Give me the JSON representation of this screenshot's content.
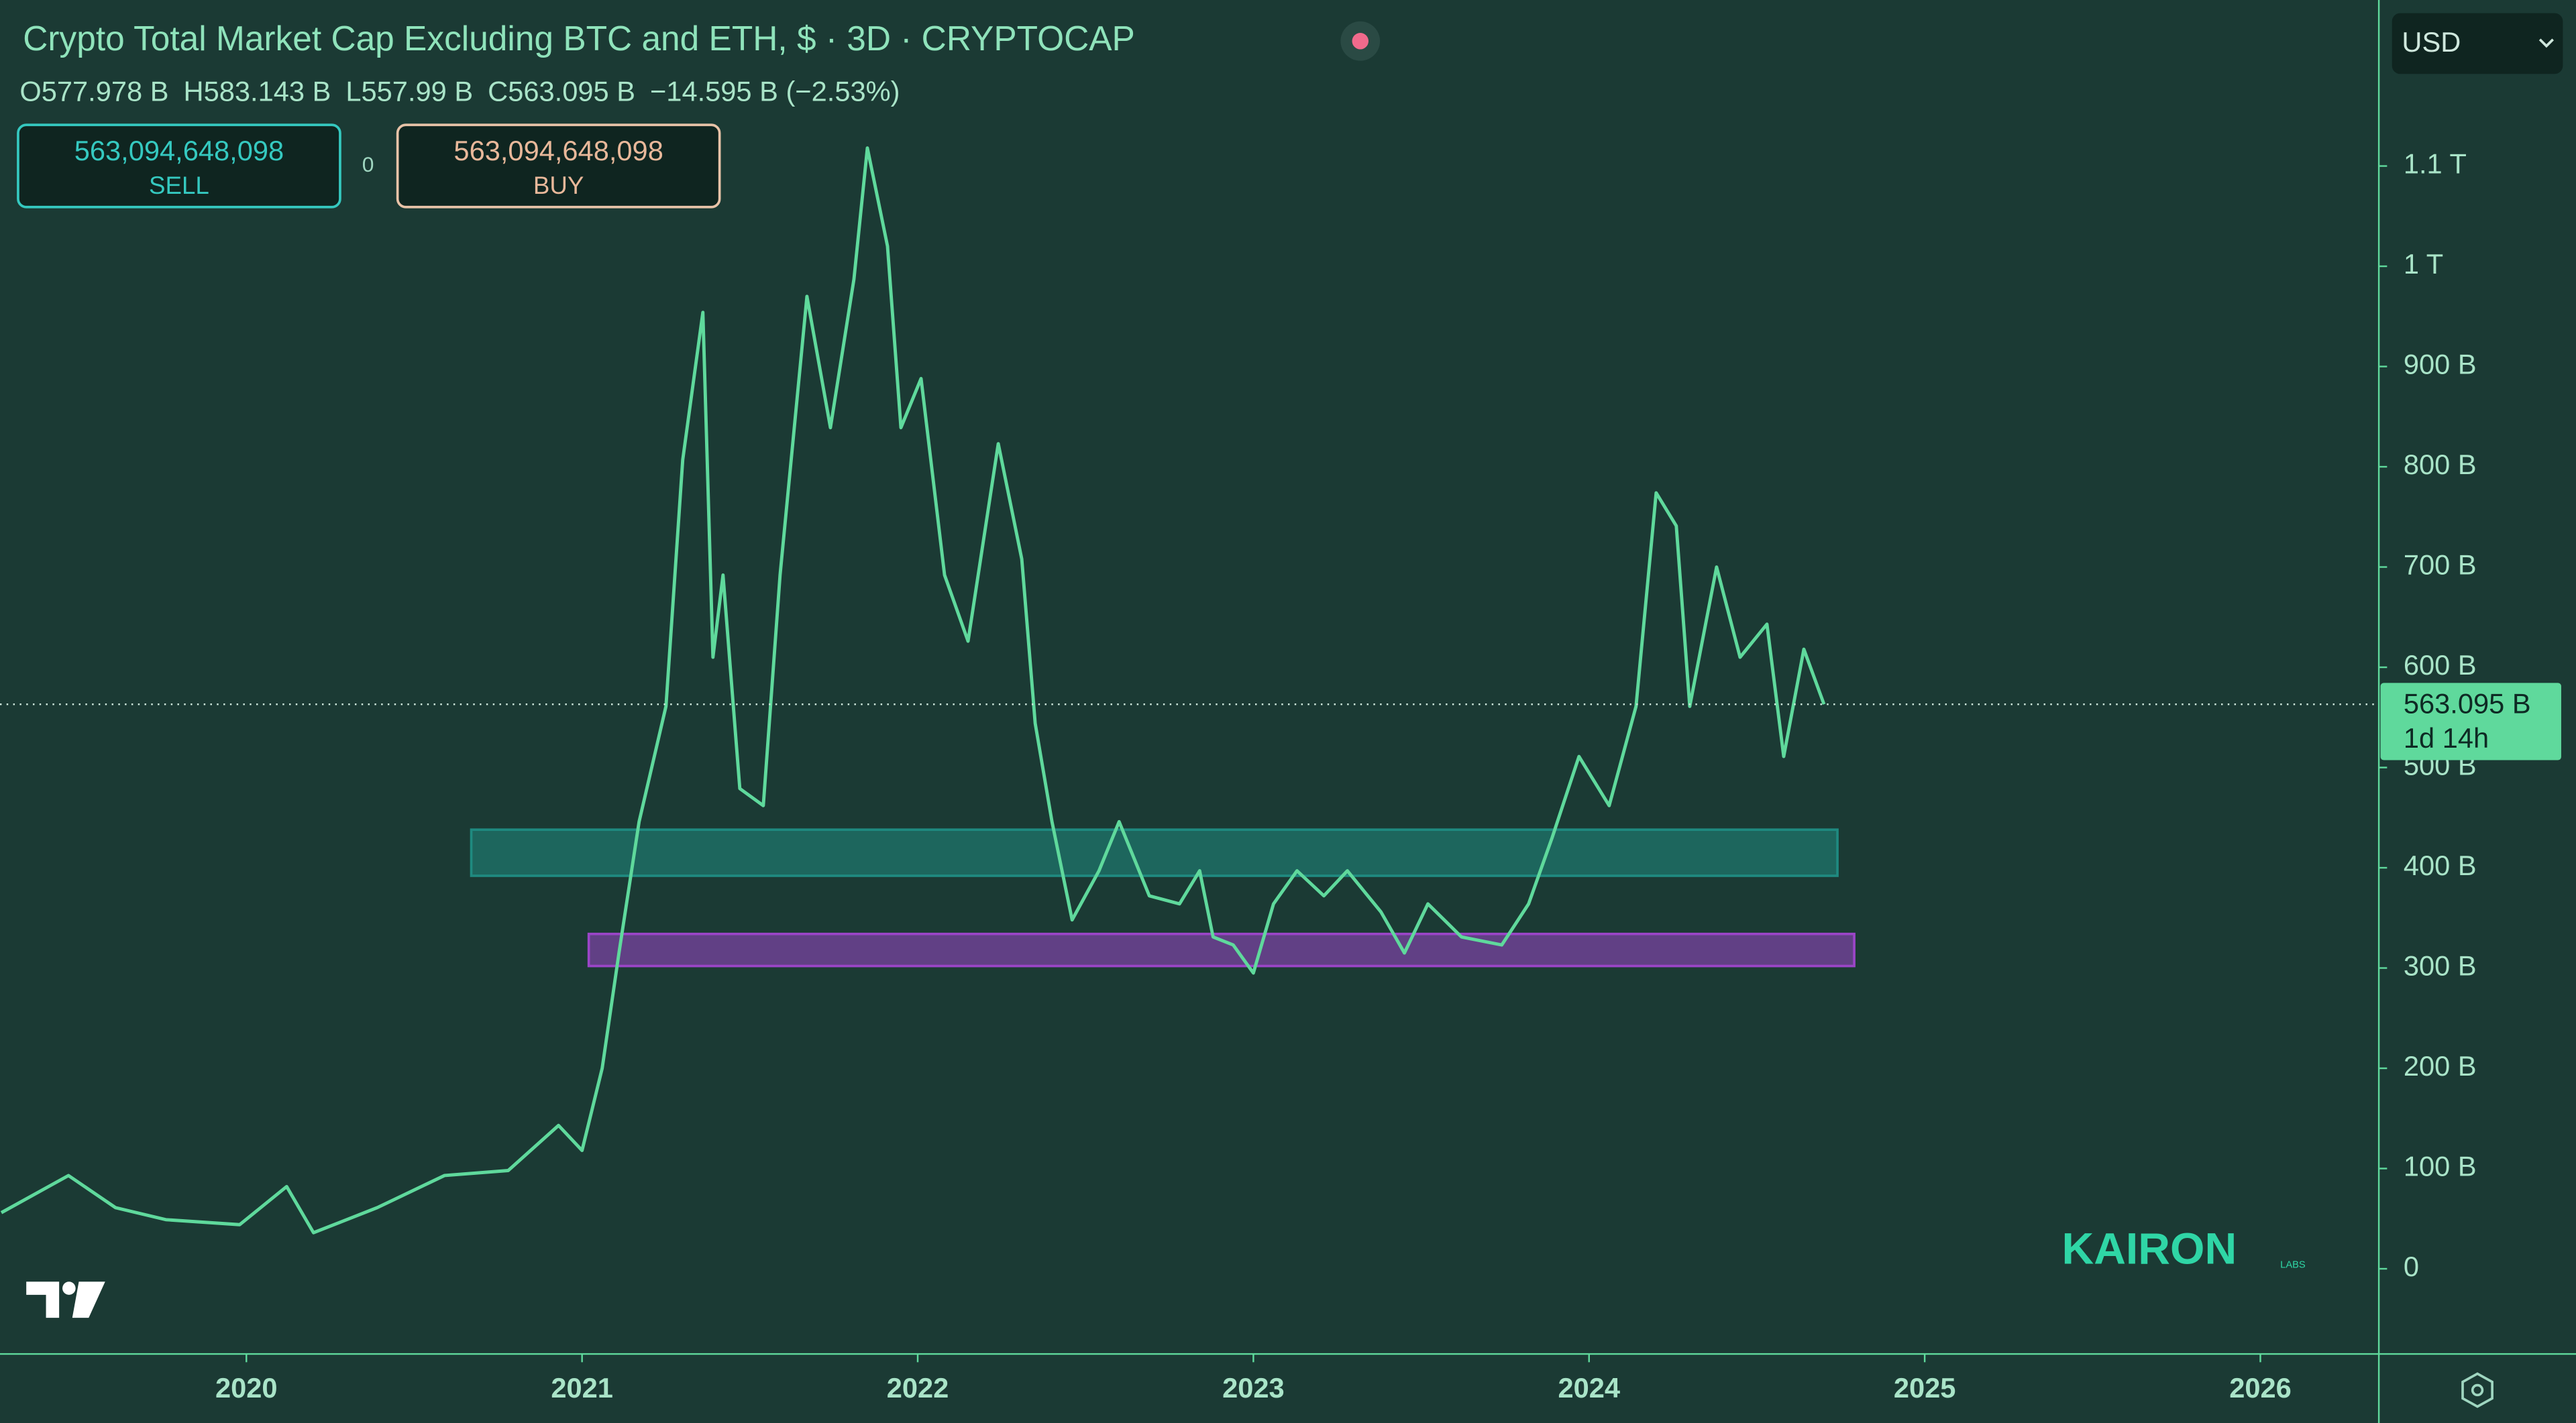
{
  "chart_data": {
    "type": "line",
    "title": "Crypto Total Market Cap Excluding BTC and ETH, $ · 3D · CRYPTOCAP",
    "ohlc": [
      "O577.978 B",
      "H583.143 B",
      "L557.99 B",
      "C563.095 B",
      "−14.595 B (−2.53%)"
    ],
    "sell_price": "563,094,648,098",
    "sell_label": "SELL",
    "spread": "0",
    "buy_price": "563,094,648,098",
    "buy_label": "BUY",
    "currency": "USD",
    "last_price_label": "563.095 B",
    "countdown": "1d 14h",
    "watermark": "KAIRON",
    "watermark_sub": "LABS",
    "color": "#5fd99c",
    "x": [
      2019.27,
      2019.47,
      2019.61,
      2019.76,
      2019.98,
      2020.12,
      2020.2,
      2020.39,
      2020.59,
      2020.78,
      2020.93,
      2021.0,
      2021.06,
      2021.11,
      2021.17,
      2021.25,
      2021.3,
      2021.36,
      2021.39,
      2021.42,
      2021.47,
      2021.54,
      2021.59,
      2021.67,
      2021.74,
      2021.81,
      2021.85,
      2021.91,
      2021.95,
      2022.01,
      2022.08,
      2022.15,
      2022.24,
      2022.31,
      2022.35,
      2022.4,
      2022.46,
      2022.54,
      2022.6,
      2022.69,
      2022.78,
      2022.84,
      2022.88,
      2022.94,
      2023.0,
      2023.06,
      2023.13,
      2023.21,
      2023.28,
      2023.38,
      2023.45,
      2023.52,
      2023.62,
      2023.74,
      2023.82,
      2023.89,
      2023.97,
      2024.06,
      2024.14,
      2024.2,
      2024.26,
      2024.3,
      2024.38,
      2024.45,
      2024.53,
      2024.58,
      2024.64,
      2024.7
    ],
    "values": [
      56,
      93,
      61,
      49,
      44,
      82,
      36,
      61,
      93,
      98,
      143,
      118,
      200,
      315,
      446,
      561,
      807,
      954,
      610,
      692,
      479,
      462,
      692,
      970,
      839,
      987,
      1118,
      1020,
      839,
      888,
      692,
      626,
      823,
      708,
      544,
      446,
      348,
      397,
      446,
      372,
      364,
      397,
      331,
      323,
      295,
      364,
      397,
      372,
      397,
      356,
      315,
      364,
      331,
      323,
      364,
      430,
      511,
      462,
      561,
      774,
      741,
      561,
      700,
      610,
      643,
      511,
      618,
      563.095
    ],
    "zones": [
      {
        "x": [
          2020.67,
          2024.74
        ],
        "y": [
          392,
          438
        ],
        "color": "#1f8a80"
      },
      {
        "x": [
          2021.02,
          2024.79
        ],
        "y": [
          302,
          334
        ],
        "color": "#9b45c8"
      }
    ],
    "xlim": [
      2019.266,
      2026.353
    ],
    "xticks": [
      2020,
      2021,
      2022,
      2023,
      2024,
      2025,
      2026
    ],
    "ylim": [
      -85,
      1265.6
    ],
    "yticks": [
      0,
      {
        "value": 100,
        "label": "100 B"
      },
      {
        "value": 200,
        "label": "200 B"
      },
      {
        "value": 300,
        "label": "300 B"
      },
      {
        "value": 400,
        "label": "400 B"
      },
      {
        "value": 500,
        "label": "500 B"
      },
      {
        "value": 600,
        "label": "600 B"
      },
      {
        "value": 700,
        "label": "700 B"
      },
      {
        "value": 800,
        "label": "800 B"
      },
      {
        "value": 900,
        "label": "900 B"
      },
      {
        "value": 1000,
        "label": "1 T"
      },
      {
        "value": 1100,
        "label": "1.1 T"
      }
    ]
  }
}
